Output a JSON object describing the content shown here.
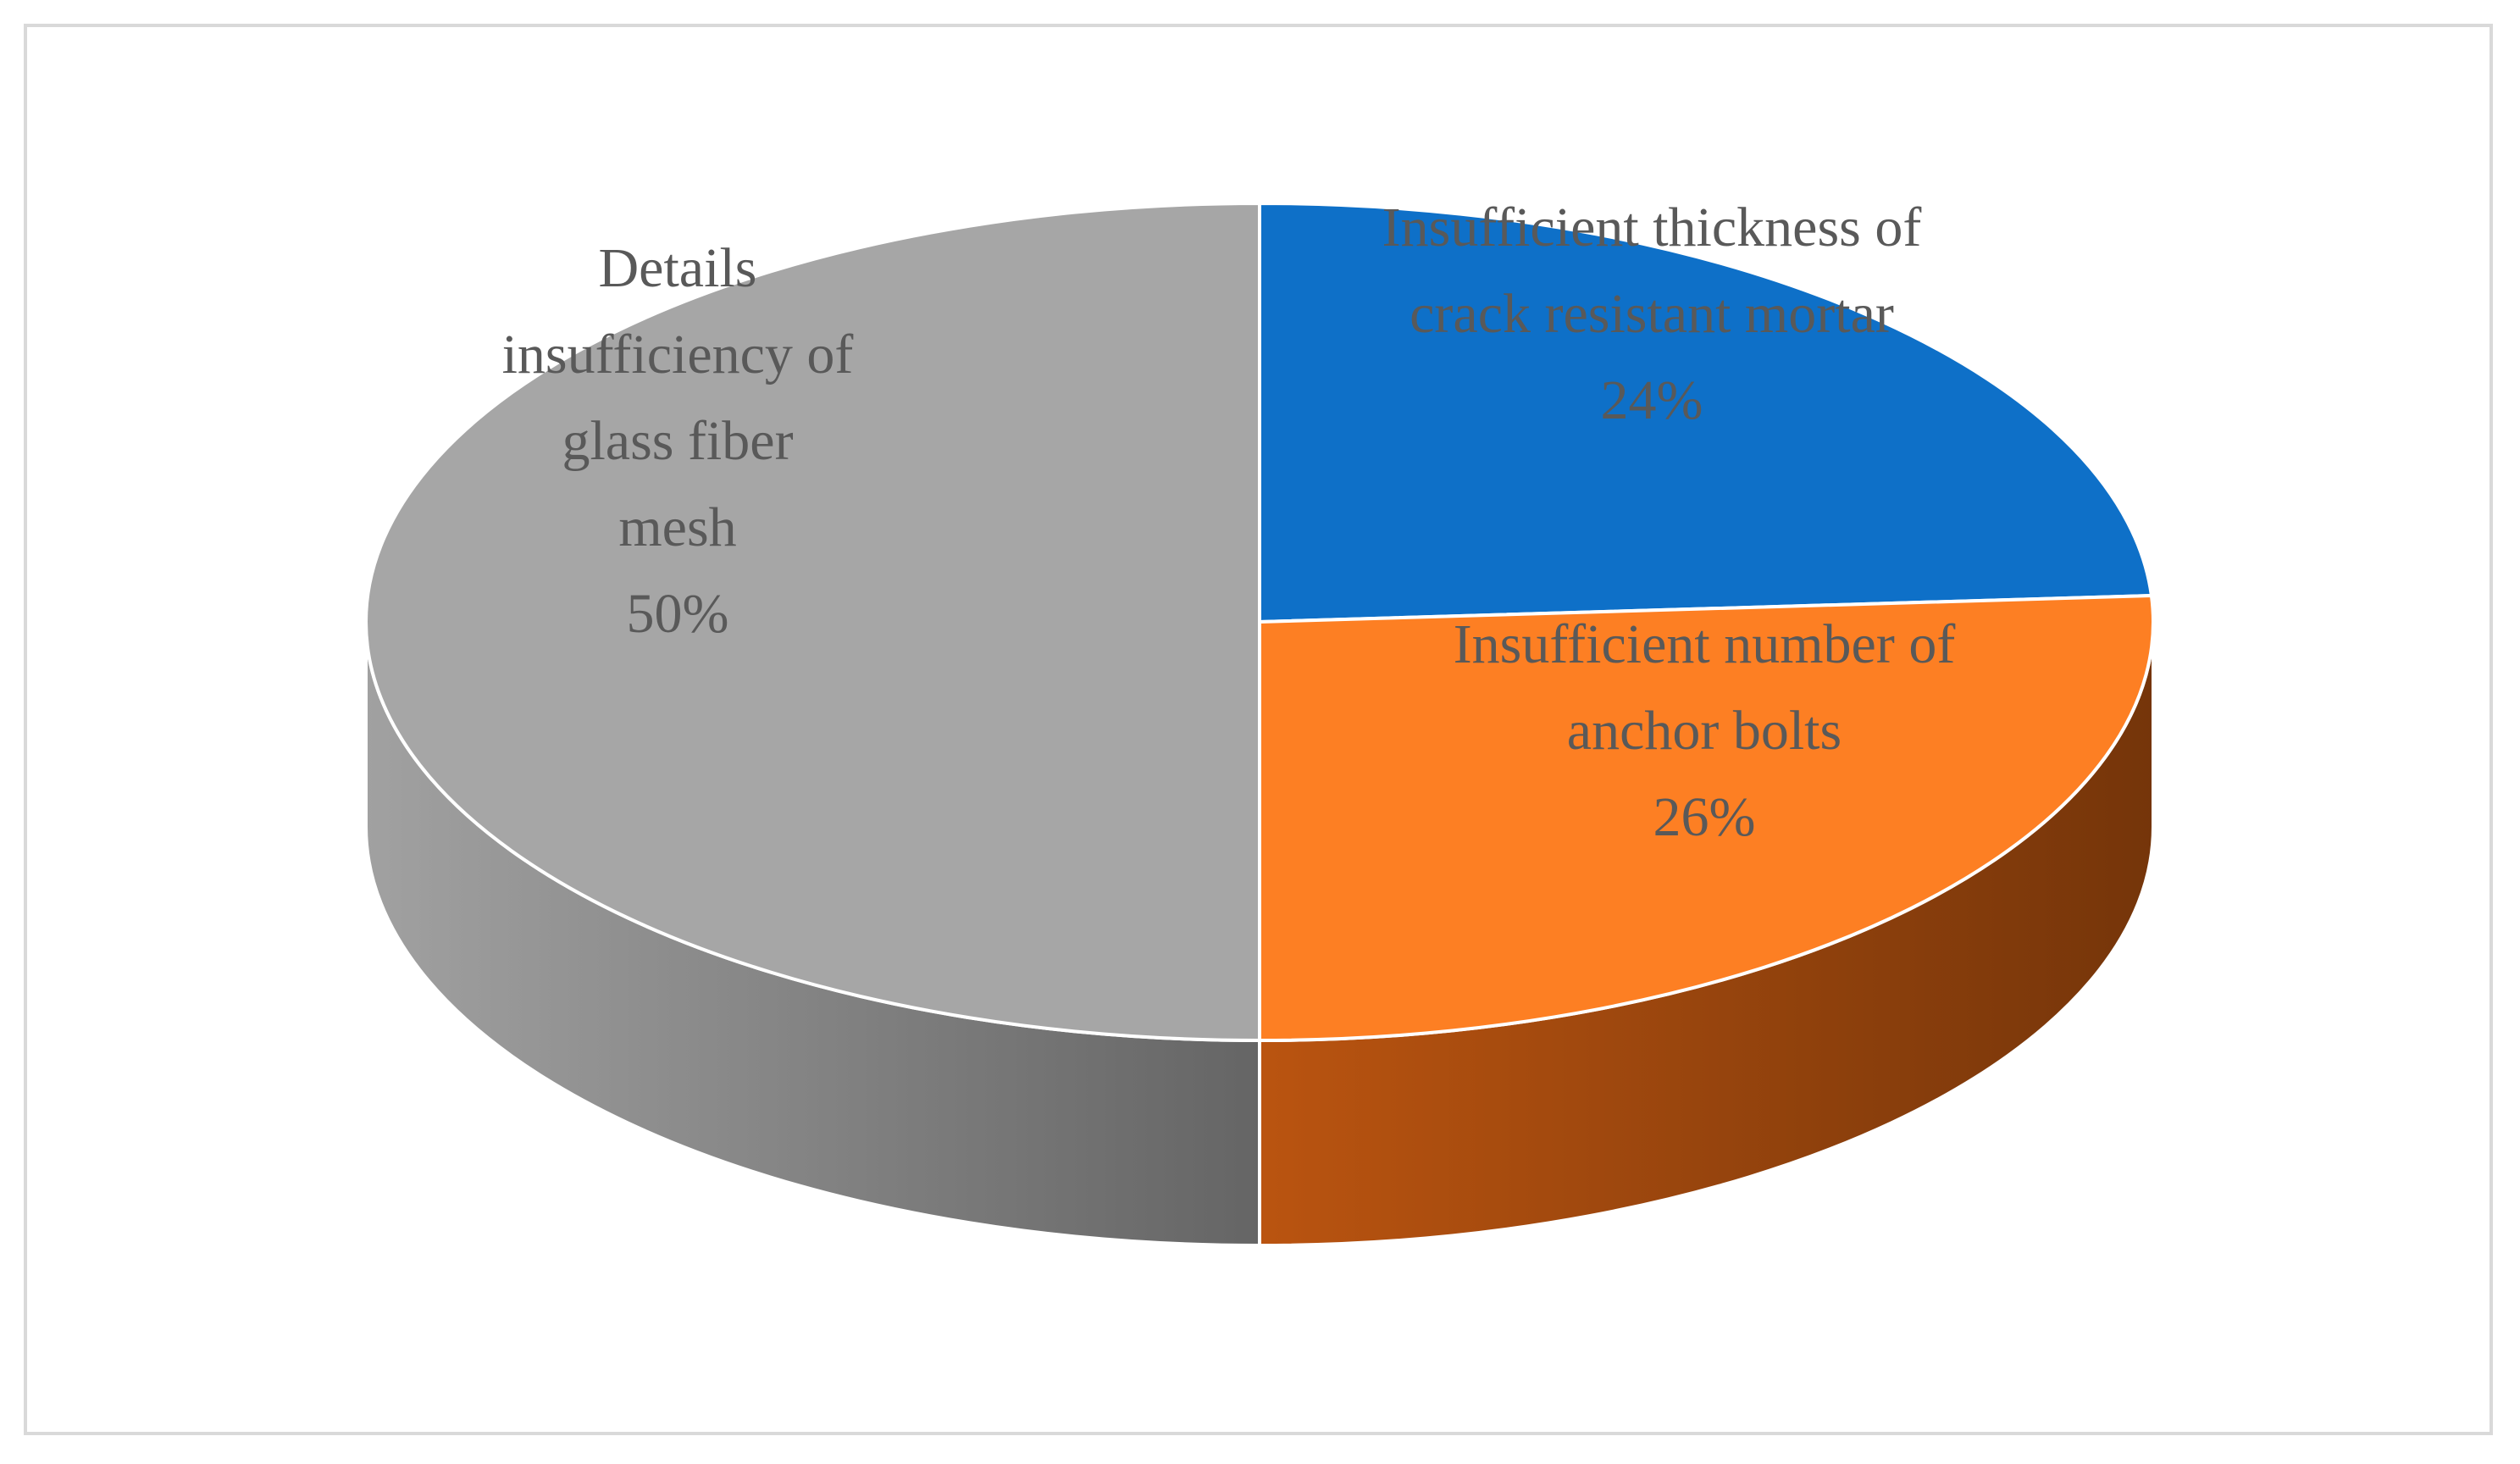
{
  "chart_data": {
    "type": "pie",
    "style": "3d",
    "title": "",
    "start_angle_deg": 0,
    "direction": "clockwise",
    "slices": [
      {
        "label_lines": [
          "Insufficient thickness of",
          "crack resistant mortar"
        ],
        "value": 24,
        "value_label": "24%",
        "color": "#0e70c8",
        "side_color": "#063b70"
      },
      {
        "label_lines": [
          "Insufficient number of",
          "anchor bolts"
        ],
        "value": 26,
        "value_label": "26%",
        "color": "#fd7f23",
        "side_color": "#8a3e0c"
      },
      {
        "label_lines": [
          "Details",
          "insufficiency of",
          "glass fiber",
          "mesh"
        ],
        "value": 50,
        "value_label": "50%",
        "color": "#a6a6a6",
        "side_color": "#777777"
      }
    ],
    "legend": "none",
    "data_labels": "inside"
  }
}
